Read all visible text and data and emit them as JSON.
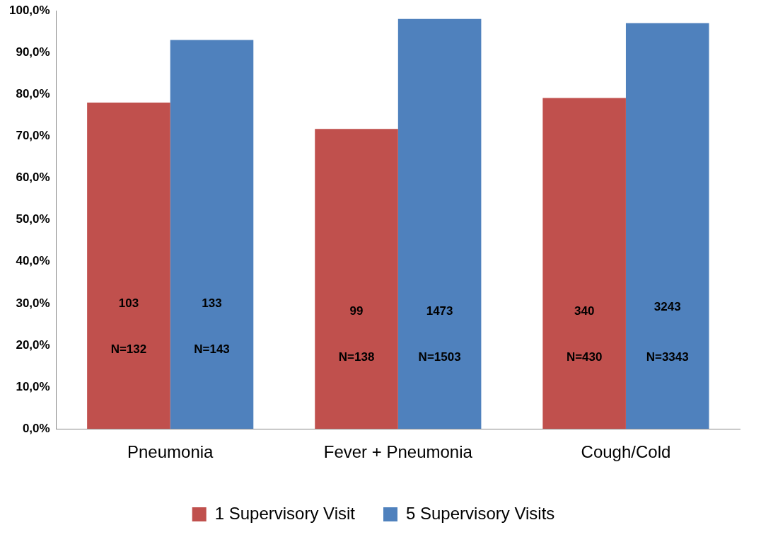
{
  "chart_data": {
    "type": "bar",
    "categories": [
      "Pneumonia",
      "Fever + Pneumonia",
      "Cough/Cold"
    ],
    "series": [
      {
        "name": "1 Supervisory Visit",
        "color": "#c0504d",
        "values": [
          78.0,
          71.7,
          79.1
        ]
      },
      {
        "name": "5 Supervisory Visits",
        "color": "#4f81bd",
        "values": [
          93.0,
          98.0,
          97.0
        ]
      }
    ],
    "ylim": [
      0,
      100
    ],
    "yticks": [
      {
        "value": 0,
        "label": "0,0%"
      },
      {
        "value": 10,
        "label": "10,0%"
      },
      {
        "value": 20,
        "label": "20,0%"
      },
      {
        "value": 30,
        "label": "30,0%"
      },
      {
        "value": 40,
        "label": "40,0%"
      },
      {
        "value": 50,
        "label": "50,0%"
      },
      {
        "value": 60,
        "label": "60,0%"
      },
      {
        "value": 70,
        "label": "70,0%"
      },
      {
        "value": 80,
        "label": "80,0%"
      },
      {
        "value": 90,
        "label": "90,0%"
      },
      {
        "value": 100,
        "label": "100,0%"
      }
    ],
    "grid": false,
    "legend": "bottom",
    "annotations": [
      {
        "text": "103",
        "x": "Pneumonia",
        "y": 30
      },
      {
        "text": "N=132",
        "x": "Pneumonia",
        "y": 19
      },
      {
        "text": "133",
        "x": "Pneumonia",
        "y": 30
      },
      {
        "text": "N=143",
        "x": "Pneumonia",
        "y": 19
      },
      {
        "text": "99",
        "x": "Fever + Pneumonia",
        "y": 28
      },
      {
        "text": "N=138",
        "x": "Fever + Pneumonia",
        "y": 17
      },
      {
        "text": "1473",
        "x": "Fever + Pneumonia",
        "y": 28
      },
      {
        "text": "N=1503",
        "x": "Fever + Pneumonia",
        "y": 17
      },
      {
        "text": "340",
        "x": "Cough/Cold",
        "y": 28
      },
      {
        "text": "N=430",
        "x": "Cough/Cold",
        "y": 17
      },
      {
        "text": "3243",
        "x": "Cough/Cold",
        "y": 29
      },
      {
        "text": "N=3343",
        "x": "Cough/Cold",
        "y": 17
      }
    ]
  }
}
